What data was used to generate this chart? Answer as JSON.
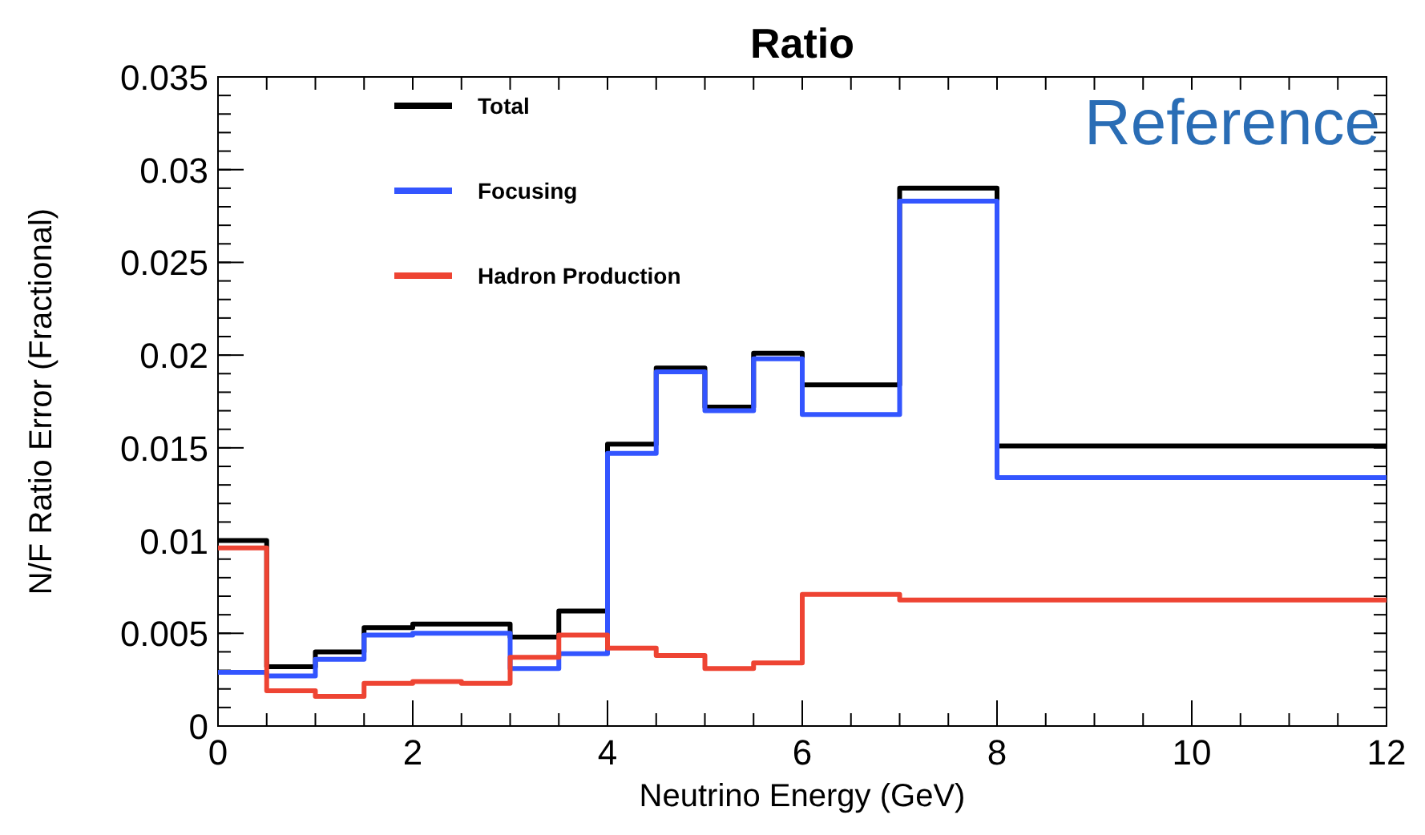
{
  "chart_data": {
    "type": "histogram",
    "title": "Ratio",
    "xlabel": "Neutrino Energy (GeV)",
    "ylabel": "N/F Ratio Error (Fractional)",
    "bins": [
      0,
      0.5,
      1,
      1.5,
      2,
      2.5,
      3,
      3.5,
      4,
      4.5,
      5,
      5.5,
      6,
      7,
      8,
      12
    ],
    "series": [
      {
        "name": "Total",
        "color": "#000000",
        "values": [
          0.01,
          0.0032,
          0.004,
          0.0053,
          0.0055,
          0.0055,
          0.0048,
          0.0062,
          0.0152,
          0.0193,
          0.0172,
          0.0201,
          0.0184,
          0.029,
          0.0151
        ]
      },
      {
        "name": "Focusing",
        "color": "#3355ff",
        "values": [
          0.0029,
          0.0027,
          0.0036,
          0.0049,
          0.005,
          0.005,
          0.0031,
          0.0039,
          0.0147,
          0.0191,
          0.017,
          0.0198,
          0.0168,
          0.0283,
          0.0134
        ]
      },
      {
        "name": "Hadron Production",
        "color": "#ee4433",
        "values": [
          0.0096,
          0.0019,
          0.0016,
          0.0023,
          0.0024,
          0.0023,
          0.0037,
          0.0049,
          0.0042,
          0.0038,
          0.0031,
          0.0034,
          0.0071,
          0.0068,
          0.0068
        ]
      }
    ],
    "xlim": [
      0,
      12
    ],
    "xticks": [
      0,
      2,
      4,
      6,
      8,
      10,
      12
    ],
    "ylim": [
      0,
      0.035
    ],
    "yticks": [
      0,
      0.005,
      0.01,
      0.015,
      0.02,
      0.025,
      0.03,
      0.035
    ],
    "legend": "top left",
    "grid": false,
    "annotations": [
      "Reference"
    ]
  }
}
